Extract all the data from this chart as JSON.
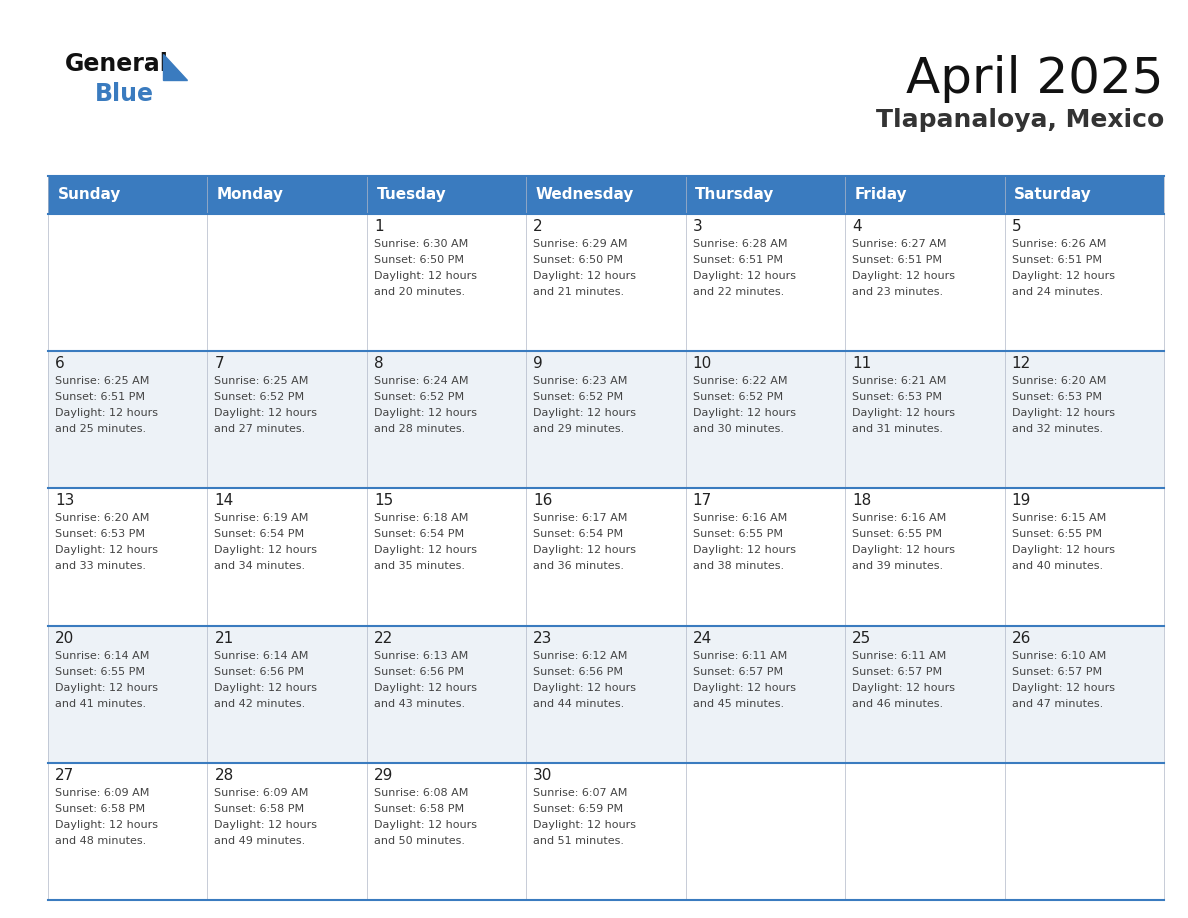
{
  "title": "April 2025",
  "subtitle": "Tlapanaloya, Mexico",
  "header_color": "#3a7bbf",
  "header_text_color": "#ffffff",
  "day_names": [
    "Sunday",
    "Monday",
    "Tuesday",
    "Wednesday",
    "Thursday",
    "Friday",
    "Saturday"
  ],
  "background_color": "#ffffff",
  "cell_bg_even": "#edf2f7",
  "cell_bg_odd": "#ffffff",
  "grid_color": "#3a7bbf",
  "text_color": "#333333",
  "logo_general_color": "#111111",
  "logo_blue_color": "#3a7bbf",
  "logo_triangle_color": "#3a7bbf",
  "title_color": "#111111",
  "subtitle_color": "#333333",
  "days": [
    {
      "day": 1,
      "col": 2,
      "row": 0,
      "sunrise": "6:30 AM",
      "sunset": "6:50 PM",
      "daylight_hours": 12,
      "daylight_minutes": 20
    },
    {
      "day": 2,
      "col": 3,
      "row": 0,
      "sunrise": "6:29 AM",
      "sunset": "6:50 PM",
      "daylight_hours": 12,
      "daylight_minutes": 21
    },
    {
      "day": 3,
      "col": 4,
      "row": 0,
      "sunrise": "6:28 AM",
      "sunset": "6:51 PM",
      "daylight_hours": 12,
      "daylight_minutes": 22
    },
    {
      "day": 4,
      "col": 5,
      "row": 0,
      "sunrise": "6:27 AM",
      "sunset": "6:51 PM",
      "daylight_hours": 12,
      "daylight_minutes": 23
    },
    {
      "day": 5,
      "col": 6,
      "row": 0,
      "sunrise": "6:26 AM",
      "sunset": "6:51 PM",
      "daylight_hours": 12,
      "daylight_minutes": 24
    },
    {
      "day": 6,
      "col": 0,
      "row": 1,
      "sunrise": "6:25 AM",
      "sunset": "6:51 PM",
      "daylight_hours": 12,
      "daylight_minutes": 25
    },
    {
      "day": 7,
      "col": 1,
      "row": 1,
      "sunrise": "6:25 AM",
      "sunset": "6:52 PM",
      "daylight_hours": 12,
      "daylight_minutes": 27
    },
    {
      "day": 8,
      "col": 2,
      "row": 1,
      "sunrise": "6:24 AM",
      "sunset": "6:52 PM",
      "daylight_hours": 12,
      "daylight_minutes": 28
    },
    {
      "day": 9,
      "col": 3,
      "row": 1,
      "sunrise": "6:23 AM",
      "sunset": "6:52 PM",
      "daylight_hours": 12,
      "daylight_minutes": 29
    },
    {
      "day": 10,
      "col": 4,
      "row": 1,
      "sunrise": "6:22 AM",
      "sunset": "6:52 PM",
      "daylight_hours": 12,
      "daylight_minutes": 30
    },
    {
      "day": 11,
      "col": 5,
      "row": 1,
      "sunrise": "6:21 AM",
      "sunset": "6:53 PM",
      "daylight_hours": 12,
      "daylight_minutes": 31
    },
    {
      "day": 12,
      "col": 6,
      "row": 1,
      "sunrise": "6:20 AM",
      "sunset": "6:53 PM",
      "daylight_hours": 12,
      "daylight_minutes": 32
    },
    {
      "day": 13,
      "col": 0,
      "row": 2,
      "sunrise": "6:20 AM",
      "sunset": "6:53 PM",
      "daylight_hours": 12,
      "daylight_minutes": 33
    },
    {
      "day": 14,
      "col": 1,
      "row": 2,
      "sunrise": "6:19 AM",
      "sunset": "6:54 PM",
      "daylight_hours": 12,
      "daylight_minutes": 34
    },
    {
      "day": 15,
      "col": 2,
      "row": 2,
      "sunrise": "6:18 AM",
      "sunset": "6:54 PM",
      "daylight_hours": 12,
      "daylight_minutes": 35
    },
    {
      "day": 16,
      "col": 3,
      "row": 2,
      "sunrise": "6:17 AM",
      "sunset": "6:54 PM",
      "daylight_hours": 12,
      "daylight_minutes": 36
    },
    {
      "day": 17,
      "col": 4,
      "row": 2,
      "sunrise": "6:16 AM",
      "sunset": "6:55 PM",
      "daylight_hours": 12,
      "daylight_minutes": 38
    },
    {
      "day": 18,
      "col": 5,
      "row": 2,
      "sunrise": "6:16 AM",
      "sunset": "6:55 PM",
      "daylight_hours": 12,
      "daylight_minutes": 39
    },
    {
      "day": 19,
      "col": 6,
      "row": 2,
      "sunrise": "6:15 AM",
      "sunset": "6:55 PM",
      "daylight_hours": 12,
      "daylight_minutes": 40
    },
    {
      "day": 20,
      "col": 0,
      "row": 3,
      "sunrise": "6:14 AM",
      "sunset": "6:55 PM",
      "daylight_hours": 12,
      "daylight_minutes": 41
    },
    {
      "day": 21,
      "col": 1,
      "row": 3,
      "sunrise": "6:14 AM",
      "sunset": "6:56 PM",
      "daylight_hours": 12,
      "daylight_minutes": 42
    },
    {
      "day": 22,
      "col": 2,
      "row": 3,
      "sunrise": "6:13 AM",
      "sunset": "6:56 PM",
      "daylight_hours": 12,
      "daylight_minutes": 43
    },
    {
      "day": 23,
      "col": 3,
      "row": 3,
      "sunrise": "6:12 AM",
      "sunset": "6:56 PM",
      "daylight_hours": 12,
      "daylight_minutes": 44
    },
    {
      "day": 24,
      "col": 4,
      "row": 3,
      "sunrise": "6:11 AM",
      "sunset": "6:57 PM",
      "daylight_hours": 12,
      "daylight_minutes": 45
    },
    {
      "day": 25,
      "col": 5,
      "row": 3,
      "sunrise": "6:11 AM",
      "sunset": "6:57 PM",
      "daylight_hours": 12,
      "daylight_minutes": 46
    },
    {
      "day": 26,
      "col": 6,
      "row": 3,
      "sunrise": "6:10 AM",
      "sunset": "6:57 PM",
      "daylight_hours": 12,
      "daylight_minutes": 47
    },
    {
      "day": 27,
      "col": 0,
      "row": 4,
      "sunrise": "6:09 AM",
      "sunset": "6:58 PM",
      "daylight_hours": 12,
      "daylight_minutes": 48
    },
    {
      "day": 28,
      "col": 1,
      "row": 4,
      "sunrise": "6:09 AM",
      "sunset": "6:58 PM",
      "daylight_hours": 12,
      "daylight_minutes": 49
    },
    {
      "day": 29,
      "col": 2,
      "row": 4,
      "sunrise": "6:08 AM",
      "sunset": "6:58 PM",
      "daylight_hours": 12,
      "daylight_minutes": 50
    },
    {
      "day": 30,
      "col": 3,
      "row": 4,
      "sunrise": "6:07 AM",
      "sunset": "6:59 PM",
      "daylight_hours": 12,
      "daylight_minutes": 51
    }
  ]
}
